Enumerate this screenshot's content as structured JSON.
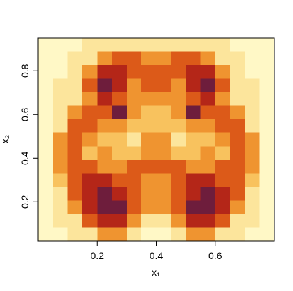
{
  "chart_data": {
    "type": "heatmap",
    "xlabel": "x₁",
    "ylabel": "x₂",
    "xlim": [
      0,
      0.8
    ],
    "ylim": [
      0.02,
      0.95
    ],
    "xticks": [
      0.2,
      0.4,
      0.6
    ],
    "yticks": [
      0.2,
      0.4,
      0.6,
      0.8
    ],
    "colors": [
      "#fff8c6",
      "#fce59c",
      "#f8c25e",
      "#ef9430",
      "#dc5a19",
      "#b42618",
      "#6e1d3c"
    ],
    "z": [
      [
        0,
        0,
        0,
        1,
        1,
        1,
        1,
        1,
        1,
        1,
        1,
        1,
        1,
        0,
        0,
        0
      ],
      [
        0,
        0,
        1,
        1,
        3,
        4,
        4,
        3,
        3,
        4,
        4,
        3,
        1,
        1,
        0,
        0
      ],
      [
        0,
        0,
        1,
        3,
        5,
        5,
        4,
        4,
        4,
        4,
        5,
        5,
        3,
        1,
        0,
        0
      ],
      [
        0,
        1,
        1,
        4,
        6,
        5,
        3,
        4,
        4,
        3,
        5,
        6,
        4,
        1,
        1,
        0
      ],
      [
        0,
        1,
        1,
        3,
        5,
        4,
        3,
        3,
        3,
        3,
        4,
        5,
        3,
        1,
        1,
        0
      ],
      [
        0,
        1,
        3,
        4,
        4,
        6,
        3,
        2,
        2,
        3,
        6,
        4,
        4,
        3,
        1,
        0
      ],
      [
        0,
        1,
        4,
        4,
        3,
        3,
        2,
        2,
        2,
        2,
        3,
        3,
        4,
        4,
        1,
        0
      ],
      [
        0,
        3,
        4,
        3,
        2,
        2,
        1,
        3,
        3,
        1,
        2,
        2,
        3,
        4,
        3,
        0
      ],
      [
        0,
        3,
        4,
        2,
        3,
        2,
        2,
        3,
        3,
        2,
        2,
        3,
        2,
        4,
        3,
        0
      ],
      [
        0,
        3,
        4,
        4,
        3,
        3,
        4,
        4,
        4,
        4,
        3,
        3,
        4,
        4,
        3,
        0
      ],
      [
        0,
        2,
        4,
        5,
        5,
        4,
        4,
        3,
        3,
        4,
        5,
        5,
        4,
        4,
        2,
        0
      ],
      [
        0,
        1,
        4,
        5,
        6,
        5,
        4,
        3,
        3,
        4,
        5,
        6,
        5,
        4,
        1,
        0
      ],
      [
        0,
        1,
        3,
        5,
        6,
        6,
        4,
        3,
        3,
        4,
        6,
        6,
        5,
        3,
        1,
        0
      ],
      [
        0,
        1,
        1,
        4,
        5,
        5,
        3,
        1,
        1,
        3,
        5,
        5,
        4,
        1,
        1,
        0
      ],
      [
        0,
        0,
        1,
        1,
        3,
        3,
        1,
        0,
        0,
        1,
        3,
        3,
        1,
        1,
        0,
        0
      ]
    ]
  }
}
